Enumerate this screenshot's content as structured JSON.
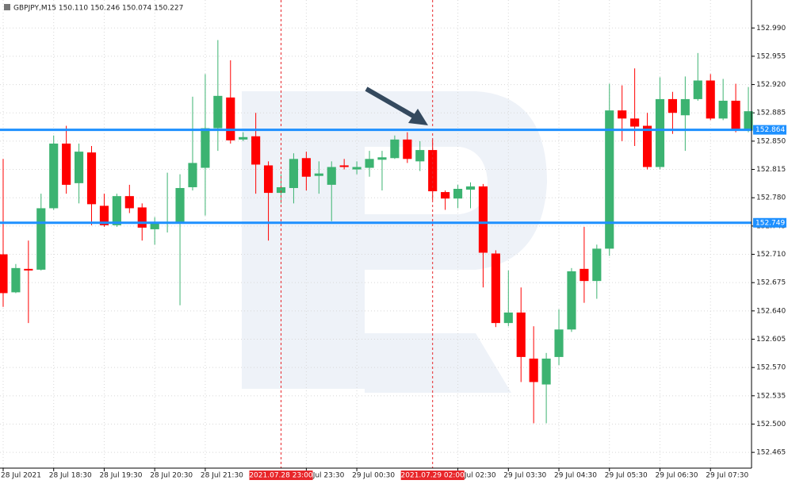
{
  "chart_data": {
    "type": "candlestick",
    "title": "GBPJPY,M15  150.110 150.246 150.074 150.227",
    "x": [
      0,
      1,
      2,
      3,
      4,
      5,
      6,
      7,
      8,
      9,
      10,
      11,
      12,
      13,
      14,
      15,
      16,
      17,
      18,
      19,
      20,
      21,
      22,
      23,
      24,
      25,
      26,
      27,
      28,
      29,
      30,
      31,
      32,
      33,
      34,
      35,
      36,
      37,
      38,
      39,
      40,
      41,
      42,
      43,
      44,
      45,
      46,
      47,
      48,
      49,
      50,
      51,
      52,
      53,
      54,
      55,
      56,
      57,
      58,
      59
    ],
    "open": [
      152.71,
      152.663,
      152.692,
      152.691,
      152.767,
      152.847,
      152.798,
      152.836,
      152.77,
      152.746,
      152.782,
      152.768,
      152.741,
      152.748,
      152.75,
      152.793,
      152.817,
      152.866,
      152.904,
      152.852,
      152.856,
      152.82,
      152.786,
      152.792,
      152.829,
      152.807,
      152.796,
      152.82,
      152.815,
      152.817,
      152.827,
      152.829,
      152.852,
      152.825,
      152.839,
      152.787,
      152.779,
      152.79,
      152.794,
      152.711,
      152.625,
      152.638,
      152.581,
      152.549,
      152.583,
      152.617,
      152.692,
      152.677,
      152.717,
      152.888,
      152.878,
      152.869,
      152.818,
      152.902,
      152.882,
      152.902,
      152.925,
      152.878,
      152.9,
      152.863
    ],
    "high": [
      152.828,
      152.698,
      152.727,
      152.785,
      152.857,
      152.869,
      152.847,
      152.844,
      152.785,
      152.785,
      152.796,
      152.773,
      152.756,
      152.811,
      152.809,
      152.905,
      152.933,
      152.975,
      152.95,
      152.861,
      152.885,
      152.825,
      152.809,
      152.835,
      152.837,
      152.825,
      152.825,
      152.828,
      152.825,
      152.838,
      152.838,
      152.857,
      152.861,
      152.85,
      152.852,
      152.789,
      152.796,
      152.799,
      152.797,
      152.715,
      152.69,
      152.669,
      152.621,
      152.588,
      152.642,
      152.693,
      152.744,
      152.722,
      152.921,
      152.919,
      152.94,
      152.885,
      152.929,
      152.911,
      152.93,
      152.959,
      152.933,
      152.927,
      152.921,
      152.917
    ],
    "low": [
      152.645,
      152.662,
      152.625,
      152.69,
      152.765,
      152.785,
      152.773,
      152.746,
      152.744,
      152.744,
      152.761,
      152.727,
      152.722,
      152.737,
      152.647,
      152.789,
      152.758,
      152.838,
      152.847,
      152.85,
      152.785,
      152.727,
      152.773,
      152.773,
      152.789,
      152.785,
      152.751,
      152.815,
      152.809,
      152.806,
      152.789,
      152.828,
      152.823,
      152.813,
      152.777,
      152.765,
      152.767,
      152.767,
      152.669,
      152.62,
      152.621,
      152.552,
      152.501,
      152.501,
      152.573,
      152.614,
      152.65,
      152.655,
      152.708,
      152.85,
      152.844,
      152.815,
      152.815,
      152.859,
      152.838,
      152.9,
      152.876,
      152.876,
      152.861,
      152.861
    ],
    "close": [
      152.662,
      152.693,
      152.69,
      152.767,
      152.847,
      152.796,
      152.837,
      152.772,
      152.746,
      152.782,
      152.767,
      152.743,
      152.749,
      152.75,
      152.792,
      152.823,
      152.866,
      152.906,
      152.851,
      152.855,
      152.821,
      152.786,
      152.793,
      152.828,
      152.806,
      152.81,
      152.818,
      152.818,
      152.818,
      152.828,
      152.83,
      152.852,
      152.828,
      152.839,
      152.788,
      152.779,
      152.791,
      152.794,
      152.712,
      152.625,
      152.638,
      152.583,
      152.552,
      152.581,
      152.617,
      152.689,
      152.677,
      152.717,
      152.888,
      152.878,
      152.868,
      152.818,
      152.902,
      152.885,
      152.902,
      152.925,
      152.878,
      152.9,
      152.863,
      152.887
    ],
    "up_color": "#3cb371",
    "down_color": "#ff0000",
    "xlim": [
      -0.25,
      59.25
    ],
    "ylim": [
      152.4455,
      153.0246
    ],
    "yticks": [
      {
        "value": 152.99,
        "label": "152.990"
      },
      {
        "value": 152.955,
        "label": "152.955"
      },
      {
        "value": 152.92,
        "label": "152.920"
      },
      {
        "value": 152.885,
        "label": "152.885"
      },
      {
        "value": 152.85,
        "label": "152.850"
      },
      {
        "value": 152.815,
        "label": "152.815"
      },
      {
        "value": 152.78,
        "label": "152.780"
      },
      {
        "value": 152.745,
        "label": "152.745"
      },
      {
        "value": 152.71,
        "label": "152.710"
      },
      {
        "value": 152.675,
        "label": "152.675"
      },
      {
        "value": 152.64,
        "label": "152.640"
      },
      {
        "value": 152.605,
        "label": "152.605"
      },
      {
        "value": 152.57,
        "label": "152.570"
      },
      {
        "value": 152.535,
        "label": "152.535"
      },
      {
        "value": 152.5,
        "label": "152.500"
      },
      {
        "value": 152.465,
        "label": "152.465"
      }
    ],
    "xticks": [
      {
        "value": 0,
        "label": "28 Jul 2021"
      },
      {
        "value": 4,
        "label": "28 Jul 18:30"
      },
      {
        "value": 8,
        "label": "28 Jul 19:30"
      },
      {
        "value": 12,
        "label": "28 Jul 20:30"
      },
      {
        "value": 16,
        "label": "28 Jul 21:30"
      },
      {
        "value": 24,
        "label": "Jul 23:30"
      },
      {
        "value": 28,
        "label": "29 Jul 00:30"
      },
      {
        "value": 36,
        "label": "Jul 02:30"
      },
      {
        "value": 40,
        "label": "29 Jul 03:30"
      },
      {
        "value": 44,
        "label": "29 Jul 04:30"
      },
      {
        "value": 48,
        "label": "29 Jul 05:30"
      },
      {
        "value": 52,
        "label": "29 Jul 06:30"
      },
      {
        "value": 56,
        "label": "29 Jul 07:30"
      }
    ],
    "hlines": [
      {
        "value": 152.864,
        "color": "#1e90ff"
      },
      {
        "value": 152.749,
        "color": "#1e90ff"
      }
    ],
    "vlines": [
      {
        "x": 22,
        "label": "2021.07.28 23:00",
        "color": "#e8262a"
      },
      {
        "x": 34,
        "label": "2021.07.29 02:00",
        "color": "#e8262a"
      }
    ],
    "grid": true
  }
}
